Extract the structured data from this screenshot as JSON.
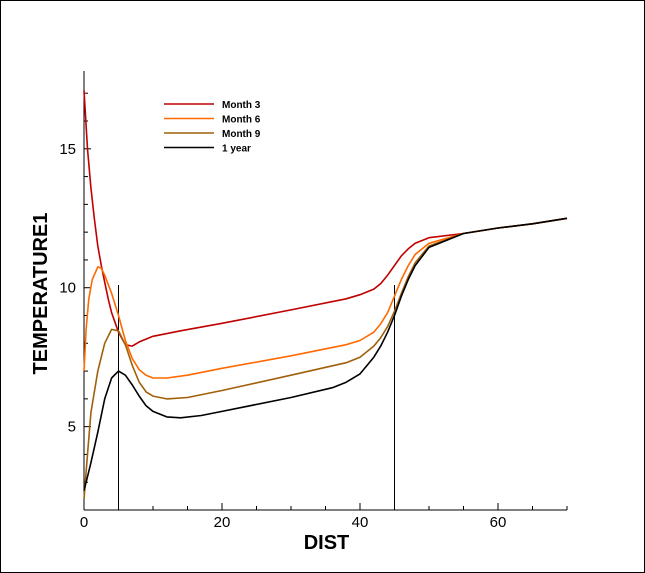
{
  "chart_data": {
    "type": "line",
    "title": "",
    "xlabel": "DIST",
    "ylabel": "TEMPERATURE1",
    "xlim": [
      0,
      70
    ],
    "ylim": [
      2,
      17.8
    ],
    "x_ticks": [
      0,
      20,
      40,
      60
    ],
    "y_ticks": [
      5,
      10,
      15
    ],
    "grid": false,
    "legend_position": "top-left",
    "vertical_markers": [
      5,
      45
    ],
    "series": [
      {
        "name": "Month 3",
        "color": "#c00000",
        "points": [
          [
            0,
            17.1
          ],
          [
            0.5,
            15.0
          ],
          [
            1,
            13.6
          ],
          [
            1.5,
            12.5
          ],
          [
            2,
            11.5
          ],
          [
            2.5,
            10.8
          ],
          [
            3,
            10.2
          ],
          [
            3.5,
            9.6
          ],
          [
            4,
            9.1
          ],
          [
            5,
            8.4
          ],
          [
            6,
            7.95
          ],
          [
            7,
            7.9
          ],
          [
            8,
            8.05
          ],
          [
            10,
            8.25
          ],
          [
            14,
            8.45
          ],
          [
            20,
            8.72
          ],
          [
            30,
            9.2
          ],
          [
            38,
            9.6
          ],
          [
            40,
            9.75
          ],
          [
            42,
            9.95
          ],
          [
            43,
            10.15
          ],
          [
            44,
            10.45
          ],
          [
            45,
            10.8
          ],
          [
            46,
            11.15
          ],
          [
            47,
            11.4
          ],
          [
            48,
            11.6
          ],
          [
            50,
            11.8
          ],
          [
            55,
            11.95
          ],
          [
            60,
            12.15
          ],
          [
            65,
            12.3
          ],
          [
            70,
            12.5
          ]
        ]
      },
      {
        "name": "Month 6",
        "color": "#ff6a00",
        "points": [
          [
            0,
            7.0
          ],
          [
            0.3,
            8.5
          ],
          [
            0.7,
            9.6
          ],
          [
            1.2,
            10.3
          ],
          [
            2,
            10.75
          ],
          [
            2.5,
            10.7
          ],
          [
            3,
            10.45
          ],
          [
            4,
            9.8
          ],
          [
            5,
            9.0
          ],
          [
            6,
            8.1
          ],
          [
            7,
            7.45
          ],
          [
            8,
            7.05
          ],
          [
            9,
            6.85
          ],
          [
            10,
            6.75
          ],
          [
            12,
            6.75
          ],
          [
            15,
            6.85
          ],
          [
            20,
            7.1
          ],
          [
            30,
            7.55
          ],
          [
            38,
            7.95
          ],
          [
            40,
            8.1
          ],
          [
            42,
            8.4
          ],
          [
            43,
            8.7
          ],
          [
            44,
            9.1
          ],
          [
            45,
            9.7
          ],
          [
            46,
            10.3
          ],
          [
            47,
            10.8
          ],
          [
            48,
            11.2
          ],
          [
            50,
            11.6
          ],
          [
            55,
            11.95
          ],
          [
            60,
            12.15
          ],
          [
            65,
            12.3
          ],
          [
            70,
            12.5
          ]
        ]
      },
      {
        "name": "Month 9",
        "color": "#a0600a",
        "points": [
          [
            0,
            2.4
          ],
          [
            0.5,
            4.0
          ],
          [
            1,
            5.5
          ],
          [
            2,
            7.0
          ],
          [
            3,
            8.0
          ],
          [
            4,
            8.5
          ],
          [
            5,
            8.45
          ],
          [
            6,
            7.95
          ],
          [
            7,
            7.2
          ],
          [
            8,
            6.6
          ],
          [
            9,
            6.25
          ],
          [
            10,
            6.1
          ],
          [
            12,
            6.0
          ],
          [
            15,
            6.05
          ],
          [
            20,
            6.3
          ],
          [
            30,
            6.85
          ],
          [
            38,
            7.3
          ],
          [
            40,
            7.5
          ],
          [
            42,
            7.9
          ],
          [
            43,
            8.2
          ],
          [
            44,
            8.6
          ],
          [
            45,
            9.15
          ],
          [
            46,
            9.8
          ],
          [
            47,
            10.4
          ],
          [
            48,
            10.9
          ],
          [
            50,
            11.5
          ],
          [
            55,
            11.95
          ],
          [
            60,
            12.15
          ],
          [
            65,
            12.3
          ],
          [
            70,
            12.5
          ]
        ]
      },
      {
        "name": "1 year",
        "color": "#000000",
        "points": [
          [
            0,
            2.7
          ],
          [
            0.5,
            3.2
          ],
          [
            1,
            3.7
          ],
          [
            2,
            4.8
          ],
          [
            3,
            6.0
          ],
          [
            4,
            6.75
          ],
          [
            5,
            7.0
          ],
          [
            6,
            6.85
          ],
          [
            7,
            6.5
          ],
          [
            8,
            6.1
          ],
          [
            9,
            5.75
          ],
          [
            10,
            5.55
          ],
          [
            12,
            5.35
          ],
          [
            14,
            5.32
          ],
          [
            17,
            5.4
          ],
          [
            20,
            5.55
          ],
          [
            30,
            6.05
          ],
          [
            36,
            6.4
          ],
          [
            38,
            6.6
          ],
          [
            40,
            6.9
          ],
          [
            42,
            7.5
          ],
          [
            43,
            7.9
          ],
          [
            44,
            8.4
          ],
          [
            45,
            9.0
          ],
          [
            46,
            9.7
          ],
          [
            47,
            10.3
          ],
          [
            48,
            10.8
          ],
          [
            50,
            11.45
          ],
          [
            55,
            11.95
          ],
          [
            60,
            12.15
          ],
          [
            65,
            12.3
          ],
          [
            70,
            12.5
          ]
        ]
      }
    ]
  }
}
